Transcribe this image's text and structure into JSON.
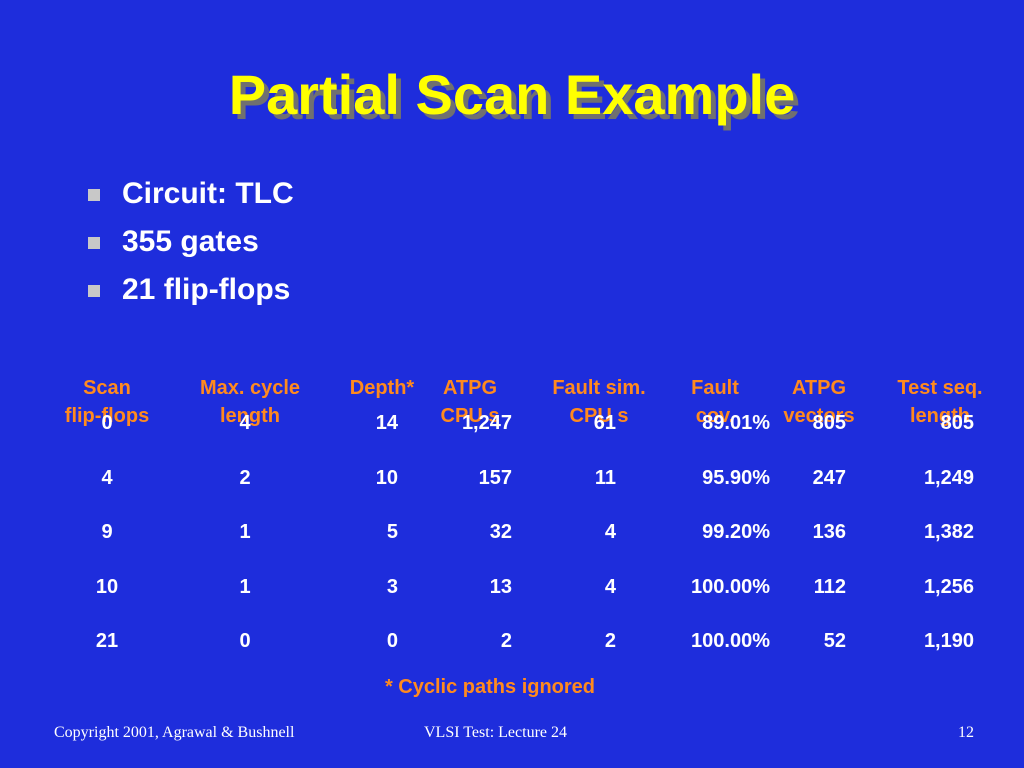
{
  "slide": {
    "title": "Partial Scan Example",
    "bullets": [
      "Circuit: TLC",
      "355 gates",
      "21 flip-flops"
    ]
  },
  "table": {
    "headers": [
      {
        "line1": "Scan",
        "line2": "flip-flops"
      },
      {
        "line1": "Max. cycle",
        "line2": "length"
      },
      {
        "line1": "Depth*",
        "line2": ""
      },
      {
        "line1": "ATPG",
        "line2": "CPU s"
      },
      {
        "line1": "Fault sim.",
        "line2": "CPU s"
      },
      {
        "line1": "Fault",
        "line2": "cov."
      },
      {
        "line1": "ATPG",
        "line2": "vectors"
      },
      {
        "line1": "Test seq.",
        "line2": "length"
      }
    ],
    "rows": [
      [
        "0",
        "4",
        "14",
        "1,247",
        "61",
        "89.01%",
        "805",
        "805"
      ],
      [
        "4",
        "2",
        "10",
        "157",
        "11",
        "95.90%",
        "247",
        "1,249"
      ],
      [
        "9",
        "1",
        "5",
        "32",
        "4",
        "99.20%",
        "136",
        "1,382"
      ],
      [
        "10",
        "1",
        "3",
        "13",
        "4",
        "100.00%",
        "112",
        "1,256"
      ],
      [
        "21",
        "0",
        "0",
        "2",
        "2",
        "100.00%",
        "52",
        "1,190"
      ]
    ]
  },
  "footnote": "* Cyclic paths ignored",
  "footer": {
    "copyright": "Copyright 2001, Agrawal & Bushnell",
    "course": "VLSI Test: Lecture 24",
    "page": "12"
  },
  "colors": {
    "background": "#1e2ddc",
    "title": "#ffff00",
    "header_text": "#ff8a1e",
    "body_text": "#ffffff",
    "bullet_marker": "#c8c8c8"
  }
}
